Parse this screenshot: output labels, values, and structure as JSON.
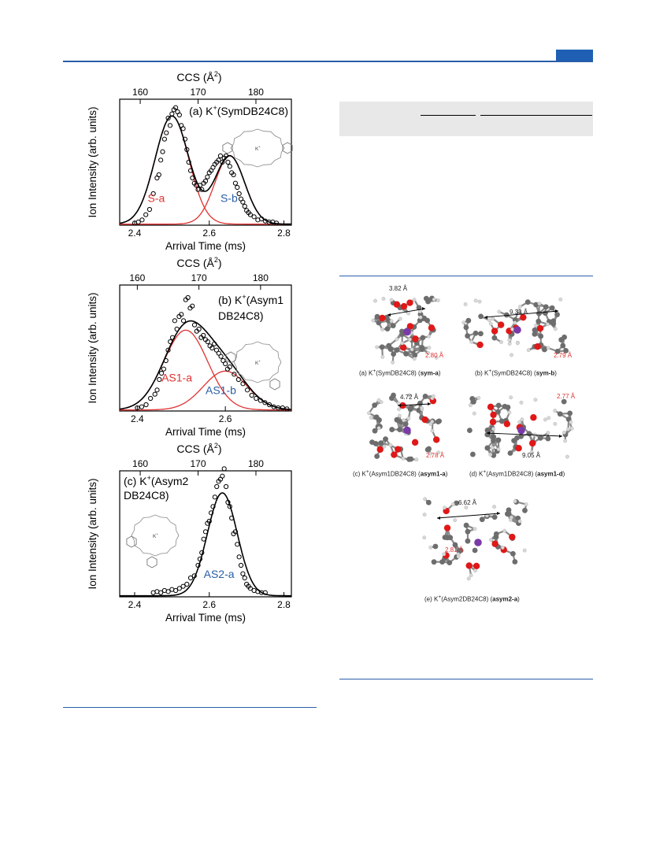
{
  "header": {
    "accent_color": "#1f5fb4"
  },
  "table": {
    "header_bg": "#e8e8e8"
  },
  "chart_data": [
    {
      "type": "scatter",
      "panel_label": "(a) K",
      "panel_label_sup": "+",
      "panel_label_rest": "(SymDB24C8)",
      "xlabel": "Arrival Time (ms)",
      "ylabel": "Ion Intensity (arb. units)",
      "top_axis_label": "CCS (Å",
      "top_axis_sup": "2",
      "top_axis_close": ")",
      "xlim": [
        2.36,
        2.82
      ],
      "ylim": [
        0,
        1.2
      ],
      "x_ticks": [
        "2.4",
        "2.6",
        "2.8"
      ],
      "x_tick_values": [
        2.4,
        2.6,
        2.8
      ],
      "top_ticks": [
        "160",
        "170",
        "180"
      ],
      "top_tick_positions": [
        2.415,
        2.57,
        2.725
      ],
      "peak_labels": [
        {
          "text": "S-a",
          "color": "#e03030",
          "x": 2.435,
          "y": 0.22
        },
        {
          "text": "S-b",
          "color": "#2a5ea8",
          "x": 2.63,
          "y": 0.22
        }
      ],
      "fit_components": [
        {
          "name": "S-a",
          "center": 2.5,
          "amp": 1.03,
          "sigma": 0.045,
          "color": "#e03030"
        },
        {
          "name": "S-b",
          "center": 2.655,
          "amp": 0.65,
          "sigma": 0.04,
          "color": "#e03030"
        }
      ],
      "data_points": {
        "x": [
          2.4,
          2.41,
          2.42,
          2.43,
          2.44,
          2.45,
          2.46,
          2.465,
          2.47,
          2.475,
          2.48,
          2.485,
          2.49,
          2.495,
          2.5,
          2.505,
          2.51,
          2.515,
          2.52,
          2.525,
          2.53,
          2.535,
          2.54,
          2.545,
          2.55,
          2.555,
          2.56,
          2.565,
          2.57,
          2.575,
          2.58,
          2.585,
          2.59,
          2.595,
          2.6,
          2.605,
          2.61,
          2.615,
          2.62,
          2.625,
          2.63,
          2.635,
          2.64,
          2.645,
          2.65,
          2.655,
          2.66,
          2.665,
          2.67,
          2.675,
          2.68,
          2.685,
          2.69,
          2.695,
          2.7,
          2.705,
          2.71,
          2.72,
          2.73,
          2.74,
          2.75,
          2.76,
          2.77,
          2.78
        ],
        "y": [
          0.02,
          0.03,
          0.05,
          0.1,
          0.15,
          0.3,
          0.45,
          0.48,
          0.62,
          0.7,
          0.82,
          0.88,
          1.02,
          0.95,
          1.06,
          1.1,
          1.12,
          1.08,
          1.05,
          0.95,
          0.92,
          0.82,
          0.72,
          0.6,
          0.52,
          0.45,
          0.4,
          0.38,
          0.34,
          0.38,
          0.34,
          0.4,
          0.42,
          0.46,
          0.5,
          0.52,
          0.55,
          0.58,
          0.6,
          0.62,
          0.66,
          0.6,
          0.64,
          0.66,
          0.6,
          0.56,
          0.5,
          0.48,
          0.4,
          0.36,
          0.3,
          0.25,
          0.22,
          0.18,
          0.14,
          0.12,
          0.1,
          0.08,
          0.05,
          0.06,
          0.04,
          0.03,
          0.03,
          0.02
        ]
      }
    },
    {
      "type": "scatter",
      "panel_label": "(b) K",
      "panel_label_sup": "+",
      "panel_label_rest": "(Asym1",
      "panel_label_line2": "DB24C8)",
      "xlabel": "Arrival Time (ms)",
      "ylabel": "Ion Intensity (arb. units)",
      "top_axis_label": "CCS (Å",
      "top_axis_sup": "2",
      "top_axis_close": ")",
      "xlim": [
        2.36,
        2.75
      ],
      "ylim": [
        0,
        1.2
      ],
      "x_ticks": [
        "2.4",
        "2.6"
      ],
      "x_tick_values": [
        2.4,
        2.6
      ],
      "top_ticks": [
        "160",
        "170",
        "180"
      ],
      "top_tick_positions": [
        2.4,
        2.54,
        2.68
      ],
      "peak_labels": [
        {
          "text": "AS1-a",
          "color": "#e03030",
          "x": 2.455,
          "y": 0.28
        },
        {
          "text": "AS1-b",
          "color": "#2a5ea8",
          "x": 2.555,
          "y": 0.16
        }
      ],
      "fit_components": [
        {
          "name": "AS1-a",
          "center": 2.51,
          "amp": 0.76,
          "sigma": 0.05,
          "color": "#e03030"
        },
        {
          "name": "AS1-b",
          "center": 2.6,
          "amp": 0.37,
          "sigma": 0.05,
          "color": "#e03030"
        }
      ],
      "data_points": {
        "x": [
          2.4,
          2.41,
          2.42,
          2.43,
          2.44,
          2.445,
          2.45,
          2.455,
          2.46,
          2.465,
          2.47,
          2.475,
          2.48,
          2.485,
          2.49,
          2.495,
          2.5,
          2.505,
          2.51,
          2.515,
          2.52,
          2.525,
          2.53,
          2.535,
          2.54,
          2.545,
          2.55,
          2.555,
          2.56,
          2.565,
          2.57,
          2.575,
          2.58,
          2.585,
          2.59,
          2.595,
          2.6,
          2.605,
          2.61,
          2.62,
          2.63,
          2.64,
          2.65,
          2.66,
          2.67,
          2.68,
          2.69,
          2.7,
          2.71,
          2.72,
          2.73,
          2.74
        ],
        "y": [
          0.03,
          0.04,
          0.06,
          0.12,
          0.16,
          0.2,
          0.3,
          0.36,
          0.4,
          0.48,
          0.58,
          0.66,
          0.7,
          0.86,
          0.78,
          0.9,
          0.92,
          0.86,
          1.06,
          1.08,
          0.98,
          1.0,
          0.82,
          0.76,
          0.78,
          0.7,
          0.72,
          0.68,
          0.66,
          0.62,
          0.6,
          0.64,
          0.58,
          0.55,
          0.52,
          0.48,
          0.45,
          0.4,
          0.42,
          0.35,
          0.3,
          0.26,
          0.2,
          0.15,
          0.12,
          0.1,
          0.08,
          0.06,
          0.04,
          0.03,
          0.03,
          0.02
        ]
      }
    },
    {
      "type": "scatter",
      "panel_label": "(c) K",
      "panel_label_sup": "+",
      "panel_label_rest": "(Asym2",
      "panel_label_line2": "DB24C8)",
      "xlabel": "Arrival Time (ms)",
      "ylabel": "Ion Intensity (arb. units)",
      "top_axis_label": "CCS (Å",
      "top_axis_sup": "2",
      "top_axis_close": ")",
      "xlim": [
        2.36,
        2.82
      ],
      "ylim": [
        0,
        1.2
      ],
      "x_ticks": [
        "2.4",
        "2.6",
        "2.8"
      ],
      "x_tick_values": [
        2.4,
        2.6,
        2.8
      ],
      "top_ticks": [
        "160",
        "170",
        "180"
      ],
      "top_tick_positions": [
        2.415,
        2.57,
        2.725
      ],
      "peak_labels": [
        {
          "text": "AS2-a",
          "color": "#2a5ea8",
          "x": 2.585,
          "y": 0.18
        }
      ],
      "fit_components": [
        {
          "name": "AS2-a",
          "center": 2.635,
          "amp": 0.98,
          "sigma": 0.04,
          "color": "#000000"
        }
      ],
      "data_points": {
        "x": [
          2.45,
          2.46,
          2.47,
          2.48,
          2.49,
          2.5,
          2.51,
          2.52,
          2.53,
          2.54,
          2.55,
          2.56,
          2.57,
          2.575,
          2.58,
          2.585,
          2.59,
          2.595,
          2.6,
          2.605,
          2.61,
          2.615,
          2.62,
          2.625,
          2.63,
          2.635,
          2.64,
          2.645,
          2.65,
          2.655,
          2.66,
          2.665,
          2.67,
          2.675,
          2.68,
          2.685,
          2.69,
          2.695,
          2.7,
          2.705,
          2.71,
          2.72,
          2.73,
          2.74,
          2.75
        ],
        "y": [
          0.04,
          0.05,
          0.04,
          0.06,
          0.05,
          0.07,
          0.06,
          0.08,
          0.1,
          0.12,
          0.18,
          0.2,
          0.3,
          0.36,
          0.42,
          0.55,
          0.62,
          0.7,
          0.72,
          0.8,
          0.86,
          0.95,
          1.05,
          1.1,
          1.12,
          1.15,
          1.22,
          1.05,
          0.9,
          0.86,
          0.75,
          0.6,
          0.62,
          0.5,
          0.38,
          0.3,
          0.22,
          0.18,
          0.12,
          0.1,
          0.08,
          0.06,
          0.05,
          0.04,
          0.04
        ]
      }
    }
  ],
  "structures": [
    {
      "caption_pre": "(a) K",
      "caption_sup": "+",
      "caption_mid": "(SymDB24C8) (",
      "caption_bold": "sym-a",
      "caption_post": ")",
      "distance": "3.82 Å",
      "k_distance": "2.80 Å"
    },
    {
      "caption_pre": "(b) K",
      "caption_sup": "+",
      "caption_mid": "(SymDB24C8) (",
      "caption_bold": "sym-b",
      "caption_post": ")",
      "distance": "9.33 Å",
      "k_distance": "2.79 Å"
    },
    {
      "caption_pre": "(c) K",
      "caption_sup": "+",
      "caption_mid": "(Asym1DB24C8) (",
      "caption_bold": "asym1-a",
      "caption_post": ")",
      "distance": "4.72 Å",
      "k_distance": "2.78 Å"
    },
    {
      "caption_pre": "(d) K",
      "caption_sup": "+",
      "caption_mid": "(Asym1DB24C8) (",
      "caption_bold": "asym1-d",
      "caption_post": ")",
      "distance": "9.05 Å",
      "k_distance": "2.77 Å"
    },
    {
      "caption_pre": "(e) K",
      "caption_sup": "+",
      "caption_mid": "(Asym2DB24C8) (",
      "caption_bold": "asym2-a",
      "caption_post": ")",
      "distance": "6.62 Å",
      "k_distance": "2.81 Å"
    }
  ],
  "inset_label": "K",
  "inset_label_sup": "+"
}
